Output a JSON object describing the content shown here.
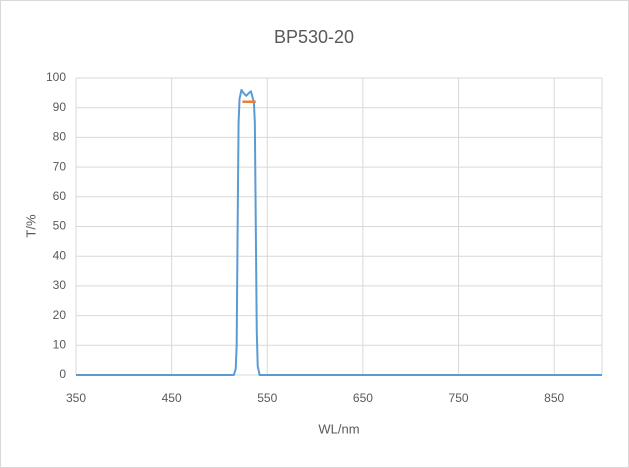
{
  "chart_data": {
    "type": "line",
    "title": "BP530-20",
    "x_label": "WL/nm",
    "y_label": "T/%",
    "series": [
      {
        "color": "#5b9bd5",
        "x": [
          350,
          515,
          517,
          518,
          519,
          520,
          521,
          523,
          525,
          528,
          531,
          533,
          535,
          536,
          537,
          538,
          539,
          540,
          542,
          800,
          900
        ],
        "values": [
          0,
          0,
          2,
          10,
          50,
          85,
          93,
          96,
          95,
          94,
          95,
          95.5,
          93,
          92,
          85,
          50,
          15,
          3,
          0,
          0,
          0
        ]
      },
      {
        "color": "#ed7d31",
        "x": [
          524,
          538
        ],
        "values": [
          92,
          92
        ]
      }
    ],
    "xlim": [
      350,
      900
    ],
    "xticks": [
      350,
      450,
      550,
      650,
      750,
      850
    ],
    "ylim": [
      0,
      100
    ],
    "yticks": [
      0,
      10,
      20,
      30,
      40,
      50,
      60,
      70,
      80,
      90,
      100
    ],
    "grid": true
  }
}
